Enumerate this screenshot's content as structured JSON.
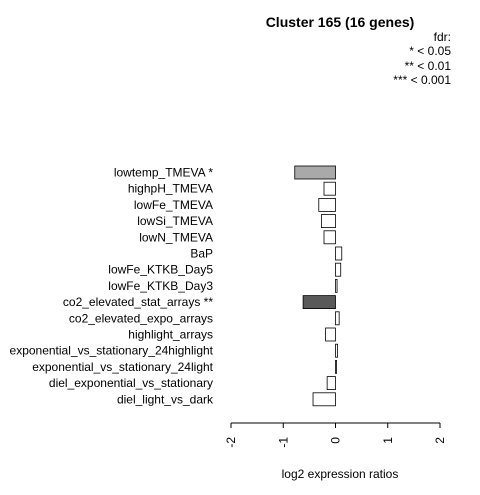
{
  "chart_data": {
    "type": "bar",
    "orientation": "horizontal",
    "title": "Cluster 165 (16 genes)",
    "xlabel": "log2 expression ratios",
    "xlim": [
      -2,
      2
    ],
    "xticks": [
      "-2",
      "-1",
      "0",
      "1",
      "2"
    ],
    "legend": {
      "title": "fdr:",
      "entries": [
        "* < 0.05",
        "** < 0.01",
        "*** < 0.001"
      ],
      "placement": "top-right"
    },
    "categories": [
      "lowtemp_TMEVA *",
      "highpH_TMEVA",
      "lowFe_TMEVA",
      "lowSi_TMEVA",
      "lowN_TMEVA",
      "BaP",
      "lowFe_KTKB_Day5",
      "lowFe_KTKB_Day3",
      "co2_elevated_stat_arrays **",
      "co2_elevated_expo_arrays",
      "highlight_arrays",
      "exponential_vs_stationary_24highlight",
      "exponential_vs_stationary_24light",
      "diel_exponential_vs_stationary",
      "diel_light_vs_dark"
    ],
    "values": [
      -0.78,
      -0.22,
      -0.32,
      -0.27,
      -0.22,
      0.12,
      0.1,
      0.03,
      -0.62,
      0.07,
      -0.19,
      0.04,
      0.02,
      -0.16,
      -0.43
    ],
    "bar_colors": [
      "#a9a9a9",
      "#ffffff",
      "#ffffff",
      "#ffffff",
      "#ffffff",
      "#ffffff",
      "#ffffff",
      "#ffffff",
      "#595959",
      "#ffffff",
      "#ffffff",
      "#ffffff",
      "#ffffff",
      "#ffffff",
      "#ffffff"
    ],
    "grid": false
  }
}
